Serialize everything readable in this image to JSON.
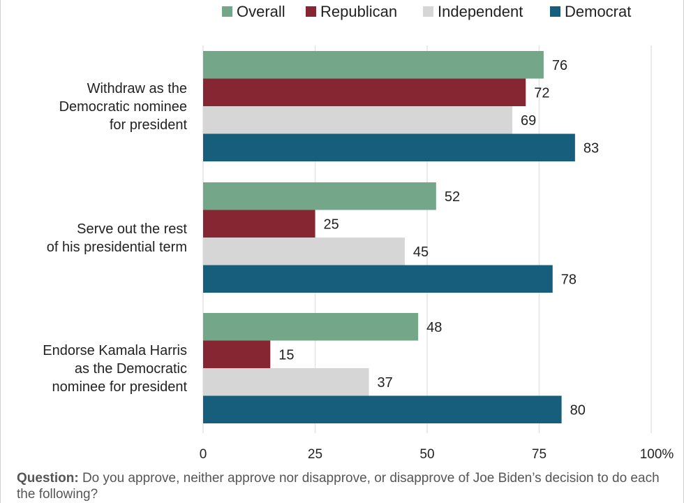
{
  "chart_data": {
    "type": "bar",
    "orientation": "horizontal",
    "categories": [
      [
        "Withdraw as the",
        "Democratic nominee",
        "for president"
      ],
      [
        "Serve out the rest",
        "of his presidential term"
      ],
      [
        "Endorse Kamala Harris",
        "as the Democratic",
        "nominee for president"
      ]
    ],
    "series": [
      {
        "name": "Overall",
        "color": "#74a68a",
        "values": [
          76,
          52,
          48
        ]
      },
      {
        "name": "Republican",
        "color": "#862633",
        "values": [
          72,
          25,
          15
        ]
      },
      {
        "name": "Independent",
        "color": "#d6d6d6",
        "values": [
          69,
          45,
          37
        ]
      },
      {
        "name": "Democrat",
        "color": "#175e7c",
        "values": [
          83,
          78,
          80
        ]
      }
    ],
    "xlim": [
      0,
      100
    ],
    "xticks": [
      "0",
      "25",
      "50",
      "75",
      "100%"
    ],
    "grid": true,
    "legend": "top"
  },
  "footnote": {
    "label": "Question:",
    "text": "Do you approve, neither approve nor disapprove, or disapprove of Joe Biden’s decision to do each the following?"
  }
}
